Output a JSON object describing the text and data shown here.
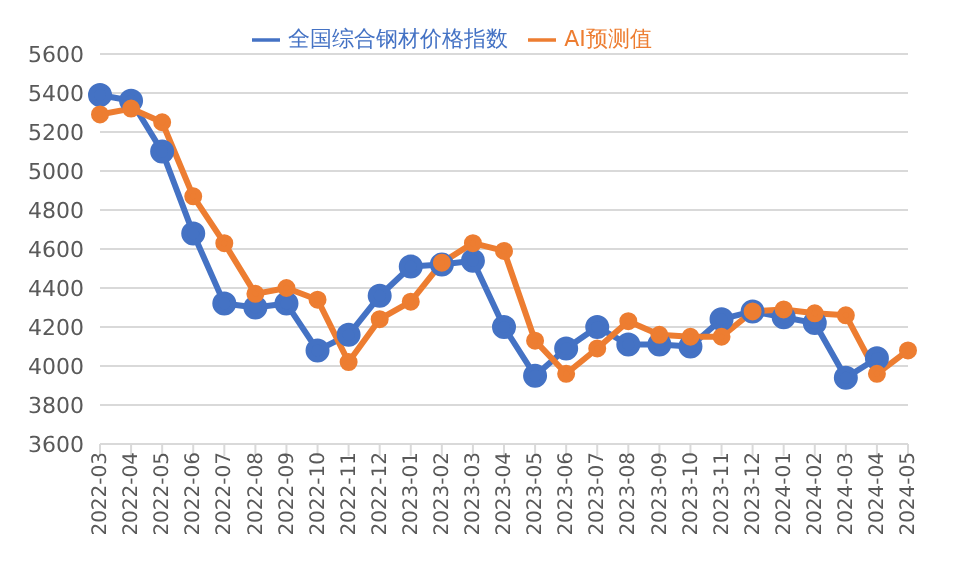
{
  "chart_data": {
    "type": "line",
    "categories": [
      "2022-03",
      "2022-04",
      "2022-05",
      "2022-06",
      "2022-07",
      "2022-08",
      "2022-09",
      "2022-10",
      "2022-11",
      "2022-12",
      "2023-01",
      "2023-02",
      "2023-03",
      "2023-04",
      "2023-05",
      "2023-06",
      "2023-07",
      "2023-08",
      "2023-09",
      "2023-10",
      "2023-11",
      "2023-12",
      "2024-01",
      "2024-02",
      "2024-03",
      "2024-04",
      "2024-05"
    ],
    "series": [
      {
        "name": "全国综合钢材价格指数",
        "color": "#4472c4",
        "values": [
          5390,
          5360,
          5100,
          4680,
          4320,
          4300,
          4320,
          4080,
          4160,
          4360,
          4510,
          4520,
          4540,
          4200,
          3950,
          4090,
          4200,
          4110,
          4110,
          4100,
          4240,
          4280,
          4250,
          4220,
          3940,
          4040,
          null
        ]
      },
      {
        "name": "AI预测值",
        "color": "#ed7d31",
        "values": [
          5290,
          5320,
          5250,
          4870,
          4630,
          4370,
          4400,
          4340,
          4020,
          4240,
          4330,
          4530,
          4630,
          4590,
          4130,
          3960,
          4090,
          4230,
          4160,
          4150,
          4150,
          4280,
          4290,
          4270,
          4260,
          3960,
          4080
        ]
      }
    ],
    "ylim": [
      3600,
      5600
    ],
    "yticks": [
      3600,
      3800,
      4000,
      4200,
      4400,
      4600,
      4800,
      5000,
      5200,
      5400,
      5600
    ],
    "grid": "y",
    "legend": "top",
    "marker": "circle",
    "line_style": "solid"
  }
}
